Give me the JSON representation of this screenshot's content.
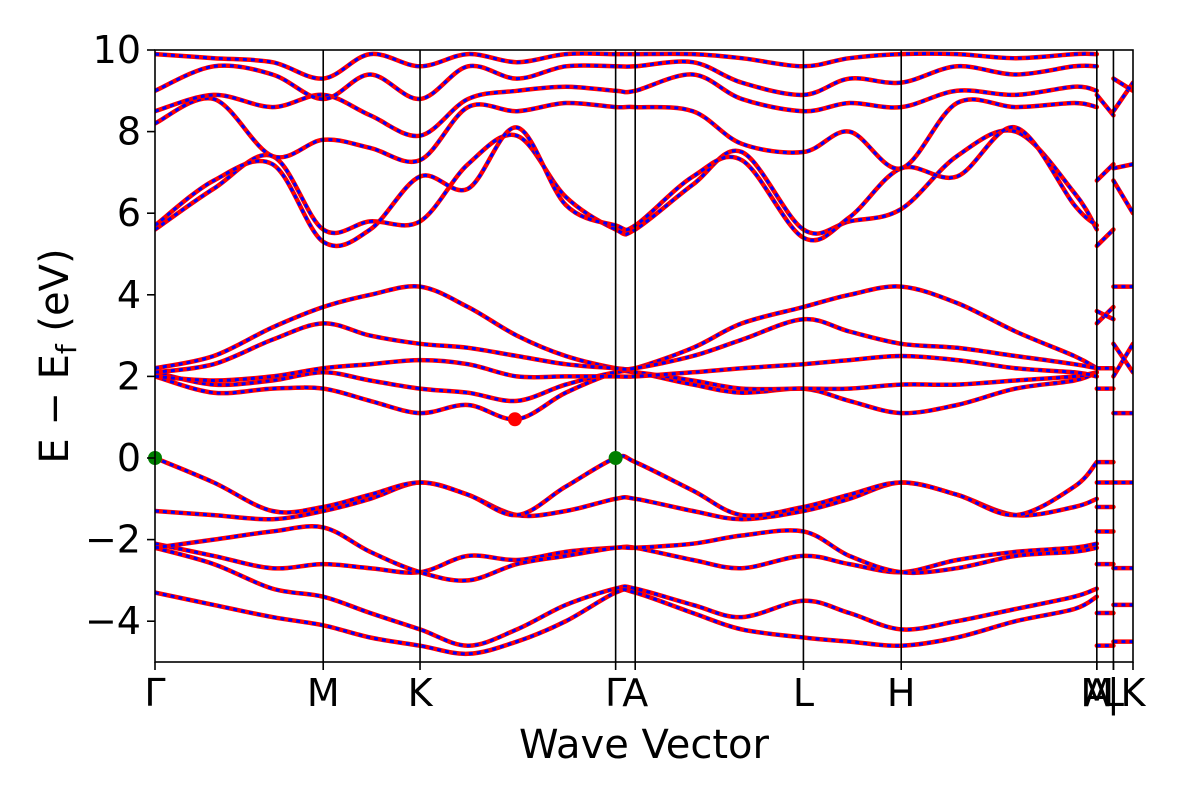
{
  "chart_data": {
    "type": "line",
    "title": "",
    "xlabel": "Wave Vector",
    "ylabel": "E − E_f (eV)",
    "ylabel_parts": {
      "main": "E − E",
      "sub": "f",
      "unit": " (eV)"
    },
    "ylim": [
      -5,
      10
    ],
    "xlim": [
      0,
      1
    ],
    "yticks": [
      {
        "value": -4,
        "label": "−4"
      },
      {
        "value": -2,
        "label": "−2"
      },
      {
        "value": 0,
        "label": "0"
      },
      {
        "value": 2,
        "label": "2"
      },
      {
        "value": 4,
        "label": "4"
      },
      {
        "value": 6,
        "label": "6"
      },
      {
        "value": 8,
        "label": "8"
      },
      {
        "value": 10,
        "label": "10"
      }
    ],
    "kpoints": [
      {
        "label": "Γ",
        "x": 0.0
      },
      {
        "label": "M",
        "x": 0.172
      },
      {
        "label": "K",
        "x": 0.271
      },
      {
        "label": "Γ",
        "x": 0.471
      },
      {
        "label": "A",
        "x": 0.491
      },
      {
        "label": "L",
        "x": 0.663
      },
      {
        "label": "H",
        "x": 0.763
      },
      {
        "label": "A",
        "x": 0.963
      },
      {
        "label": "M",
        "x": 0.963
      },
      {
        "label": "|",
        "x": 0.98
      },
      {
        "label": "L",
        "x": 0.98
      },
      {
        "label": "K",
        "x": 1.0
      }
    ],
    "series_colors": {
      "spin_up": "#ff0000",
      "spin_down": "#0000ff"
    },
    "markers": [
      {
        "name": "vbm",
        "x": 0.0,
        "y": 0.0,
        "color": "#007f00"
      },
      {
        "name": "vbm",
        "x": 0.471,
        "y": 0.0,
        "color": "#007f00"
      },
      {
        "name": "cbm",
        "x": 0.368,
        "y": 0.95,
        "color": "#ff0000"
      }
    ],
    "bands": [
      {
        "name": "band-1",
        "x": [
          0,
          0.06,
          0.12,
          0.172,
          0.22,
          0.271,
          0.32,
          0.37,
          0.42,
          0.471,
          0.491,
          0.55,
          0.6,
          0.663,
          0.71,
          0.763,
          0.82,
          0.88,
          0.94,
          0.963
        ],
        "y": [
          -2.2,
          -2.6,
          -3.2,
          -3.4,
          -3.8,
          -4.2,
          -4.6,
          -4.2,
          -3.6,
          -3.2,
          -3.2,
          -3.6,
          -3.9,
          -3.5,
          -3.8,
          -4.2,
          -4.0,
          -3.7,
          -3.4,
          -3.2
        ]
      },
      {
        "name": "band-2",
        "x": [
          0,
          0.06,
          0.12,
          0.172,
          0.22,
          0.271,
          0.32,
          0.37,
          0.42,
          0.471,
          0.491,
          0.55,
          0.6,
          0.663,
          0.71,
          0.763,
          0.82,
          0.88,
          0.94,
          0.963
        ],
        "y": [
          -3.3,
          -3.6,
          -3.9,
          -4.1,
          -4.4,
          -4.6,
          -4.8,
          -4.5,
          -4.0,
          -3.3,
          -3.3,
          -3.8,
          -4.2,
          -4.4,
          -4.5,
          -4.6,
          -4.4,
          -4.0,
          -3.7,
          -3.4
        ]
      },
      {
        "name": "band-3",
        "x": [
          0,
          0.06,
          0.12,
          0.172,
          0.22,
          0.271,
          0.32,
          0.37,
          0.42,
          0.471,
          0.491,
          0.55,
          0.6,
          0.663,
          0.71,
          0.763,
          0.82,
          0.88,
          0.94,
          0.963
        ],
        "y": [
          -2.1,
          -2.4,
          -2.7,
          -2.6,
          -2.7,
          -2.8,
          -2.4,
          -2.5,
          -2.3,
          -2.2,
          -2.2,
          -2.5,
          -2.7,
          -2.4,
          -2.6,
          -2.8,
          -2.5,
          -2.3,
          -2.2,
          -2.1
        ]
      },
      {
        "name": "band-4",
        "x": [
          0,
          0.06,
          0.12,
          0.172,
          0.22,
          0.271,
          0.32,
          0.37,
          0.42,
          0.471,
          0.491,
          0.55,
          0.6,
          0.663,
          0.71,
          0.763,
          0.82,
          0.88,
          0.94,
          0.963
        ],
        "y": [
          -2.2,
          -2.0,
          -1.8,
          -1.7,
          -2.3,
          -2.8,
          -3.0,
          -2.6,
          -2.4,
          -2.2,
          -2.2,
          -2.1,
          -1.9,
          -1.8,
          -2.4,
          -2.8,
          -2.7,
          -2.4,
          -2.3,
          -2.2
        ]
      },
      {
        "name": "band-5",
        "x": [
          0,
          0.06,
          0.12,
          0.172,
          0.22,
          0.271,
          0.32,
          0.37,
          0.42,
          0.471,
          0.491,
          0.55,
          0.6,
          0.663,
          0.71,
          0.763,
          0.82,
          0.88,
          0.94,
          0.963
        ],
        "y": [
          -1.3,
          -1.4,
          -1.5,
          -1.3,
          -1.0,
          -0.6,
          -0.9,
          -1.4,
          -1.3,
          -1.0,
          -1.0,
          -1.3,
          -1.5,
          -1.3,
          -1.0,
          -0.6,
          -0.9,
          -1.4,
          -1.2,
          -1.0
        ]
      },
      {
        "name": "band-6",
        "x": [
          0,
          0.06,
          0.12,
          0.172,
          0.22,
          0.271,
          0.32,
          0.37,
          0.42,
          0.471,
          0.491,
          0.55,
          0.6,
          0.663,
          0.71,
          0.763,
          0.82,
          0.88,
          0.94,
          0.963
        ],
        "y": [
          0.0,
          -0.6,
          -1.3,
          -1.2,
          -0.9,
          -0.6,
          -0.9,
          -1.4,
          -0.7,
          0.0,
          -0.1,
          -0.8,
          -1.4,
          -1.2,
          -0.9,
          -0.6,
          -0.9,
          -1.4,
          -0.7,
          -0.1
        ]
      },
      {
        "name": "band-7",
        "x": [
          0,
          0.06,
          0.12,
          0.172,
          0.22,
          0.271,
          0.32,
          0.37,
          0.42,
          0.471,
          0.491,
          0.55,
          0.6,
          0.663,
          0.71,
          0.763,
          0.82,
          0.88,
          0.94,
          0.963
        ],
        "y": [
          2.0,
          1.6,
          1.7,
          1.7,
          1.4,
          1.1,
          1.3,
          0.95,
          1.6,
          2.1,
          2.1,
          1.8,
          1.6,
          1.7,
          1.4,
          1.1,
          1.3,
          1.7,
          1.9,
          2.1
        ]
      },
      {
        "name": "band-8",
        "x": [
          0,
          0.06,
          0.12,
          0.172,
          0.22,
          0.271,
          0.32,
          0.37,
          0.42,
          0.471,
          0.491,
          0.55,
          0.6,
          0.663,
          0.71,
          0.763,
          0.82,
          0.88,
          0.94,
          0.963
        ],
        "y": [
          2.1,
          1.8,
          1.9,
          2.1,
          1.9,
          1.7,
          1.6,
          1.4,
          1.8,
          2.1,
          2.1,
          1.9,
          1.7,
          1.7,
          1.7,
          1.8,
          1.8,
          1.9,
          2.0,
          2.1
        ]
      },
      {
        "name": "band-9",
        "x": [
          0,
          0.06,
          0.12,
          0.172,
          0.22,
          0.271,
          0.32,
          0.37,
          0.42,
          0.471,
          0.491,
          0.55,
          0.6,
          0.663,
          0.71,
          0.763,
          0.82,
          0.88,
          0.94,
          0.963
        ],
        "y": [
          2.2,
          2.5,
          3.2,
          3.7,
          4.0,
          4.2,
          3.7,
          3.0,
          2.5,
          2.2,
          2.2,
          2.7,
          3.3,
          3.7,
          4.0,
          4.2,
          3.8,
          3.1,
          2.5,
          2.2
        ]
      },
      {
        "name": "band-10",
        "x": [
          0,
          0.06,
          0.12,
          0.172,
          0.22,
          0.271,
          0.32,
          0.37,
          0.42,
          0.471,
          0.491,
          0.55,
          0.6,
          0.663,
          0.71,
          0.763,
          0.82,
          0.88,
          0.94,
          0.963
        ],
        "y": [
          2.1,
          2.3,
          2.9,
          3.3,
          3.0,
          2.8,
          2.7,
          2.5,
          2.3,
          2.2,
          2.2,
          2.5,
          2.9,
          3.4,
          3.1,
          2.8,
          2.7,
          2.5,
          2.3,
          2.2
        ]
      },
      {
        "name": "band-11",
        "x": [
          0,
          0.06,
          0.12,
          0.172,
          0.22,
          0.271,
          0.32,
          0.37,
          0.42,
          0.471,
          0.491,
          0.55,
          0.6,
          0.663,
          0.71,
          0.763,
          0.82,
          0.88,
          0.94,
          0.963
        ],
        "y": [
          2.0,
          1.9,
          2.0,
          2.2,
          2.3,
          2.4,
          2.3,
          2.0,
          2.0,
          2.0,
          2.0,
          2.1,
          2.2,
          2.3,
          2.4,
          2.5,
          2.4,
          2.2,
          2.1,
          2.0
        ]
      },
      {
        "name": "band-12",
        "x": [
          0,
          0.06,
          0.12,
          0.172,
          0.22,
          0.271,
          0.32,
          0.37,
          0.42,
          0.471,
          0.491,
          0.55,
          0.6,
          0.663,
          0.71,
          0.763,
          0.82,
          0.88,
          0.94,
          0.963
        ],
        "y": [
          5.6,
          6.6,
          7.4,
          5.6,
          5.8,
          5.8,
          7.2,
          7.9,
          6.4,
          5.6,
          5.6,
          6.7,
          7.5,
          5.6,
          5.8,
          6.1,
          7.4,
          8.0,
          6.5,
          5.6
        ]
      },
      {
        "name": "band-13",
        "x": [
          0,
          0.06,
          0.12,
          0.172,
          0.22,
          0.271,
          0.32,
          0.37,
          0.42,
          0.471,
          0.491,
          0.55,
          0.6,
          0.663,
          0.71,
          0.763,
          0.82,
          0.88,
          0.94,
          0.963
        ],
        "y": [
          5.7,
          6.8,
          7.2,
          5.3,
          5.6,
          6.9,
          6.6,
          8.1,
          6.2,
          5.7,
          5.7,
          6.9,
          7.3,
          5.4,
          5.9,
          7.1,
          6.9,
          8.1,
          6.2,
          5.7
        ]
      },
      {
        "name": "band-14",
        "x": [
          0,
          0.06,
          0.12,
          0.172,
          0.22,
          0.271,
          0.32,
          0.37,
          0.42,
          0.471,
          0.491,
          0.55,
          0.6,
          0.663,
          0.71,
          0.763,
          0.82,
          0.88,
          0.94,
          0.963
        ],
        "y": [
          8.2,
          8.8,
          7.4,
          7.8,
          7.6,
          7.3,
          8.6,
          8.5,
          8.7,
          8.6,
          8.6,
          8.5,
          7.7,
          7.5,
          8.0,
          7.1,
          8.7,
          8.6,
          8.7,
          8.6
        ]
      },
      {
        "name": "band-15",
        "x": [
          0,
          0.06,
          0.12,
          0.172,
          0.22,
          0.271,
          0.32,
          0.37,
          0.42,
          0.471,
          0.491,
          0.55,
          0.6,
          0.663,
          0.71,
          0.763,
          0.82,
          0.88,
          0.94,
          0.963
        ],
        "y": [
          8.5,
          8.9,
          8.6,
          8.9,
          8.4,
          7.9,
          8.8,
          9.0,
          9.1,
          9.0,
          9.0,
          9.4,
          8.8,
          8.5,
          8.7,
          8.6,
          9.0,
          8.9,
          9.1,
          9.0
        ]
      },
      {
        "name": "band-16",
        "x": [
          0,
          0.06,
          0.12,
          0.172,
          0.22,
          0.271,
          0.32,
          0.37,
          0.42,
          0.471,
          0.491,
          0.55,
          0.6,
          0.663,
          0.71,
          0.763,
          0.82,
          0.88,
          0.94,
          0.963
        ],
        "y": [
          9.0,
          9.6,
          9.4,
          8.8,
          9.4,
          8.8,
          9.6,
          9.3,
          9.6,
          9.6,
          9.6,
          9.7,
          9.2,
          8.9,
          9.3,
          9.2,
          9.6,
          9.4,
          9.6,
          9.6
        ]
      },
      {
        "name": "band-17",
        "x": [
          0,
          0.06,
          0.12,
          0.172,
          0.22,
          0.271,
          0.32,
          0.37,
          0.42,
          0.471,
          0.491,
          0.55,
          0.6,
          0.663,
          0.71,
          0.763,
          0.82,
          0.88,
          0.94,
          0.963
        ],
        "y": [
          9.9,
          9.8,
          9.7,
          9.3,
          9.9,
          9.6,
          9.9,
          9.7,
          9.9,
          9.9,
          9.9,
          9.9,
          9.8,
          9.6,
          9.8,
          9.9,
          9.9,
          9.8,
          9.9,
          9.9
        ]
      }
    ],
    "segment_bands": [
      {
        "name": "seg-1",
        "x": [
          0.963,
          0.98
        ],
        "y": [
          -0.1,
          -0.1
        ]
      },
      {
        "name": "seg-2",
        "x": [
          0.963,
          0.98
        ],
        "y": [
          -0.6,
          -0.6
        ]
      },
      {
        "name": "seg-3",
        "x": [
          0.963,
          0.98
        ],
        "y": [
          -1.2,
          -1.2
        ]
      },
      {
        "name": "seg-4",
        "x": [
          0.963,
          0.98
        ],
        "y": [
          -1.8,
          -1.8
        ]
      },
      {
        "name": "seg-5",
        "x": [
          0.963,
          0.98
        ],
        "y": [
          -2.6,
          -2.6
        ]
      },
      {
        "name": "seg-6",
        "x": [
          0.963,
          0.98
        ],
        "y": [
          -3.8,
          -3.8
        ]
      },
      {
        "name": "seg-7",
        "x": [
          0.963,
          0.98
        ],
        "y": [
          -4.6,
          -4.6
        ]
      },
      {
        "name": "seg-8",
        "x": [
          0.963,
          0.98
        ],
        "y": [
          1.7,
          1.7
        ]
      },
      {
        "name": "seg-9",
        "x": [
          0.963,
          0.98
        ],
        "y": [
          2.2,
          2.2
        ]
      },
      {
        "name": "seg-10",
        "x": [
          0.963,
          0.98
        ],
        "y": [
          3.3,
          3.7
        ]
      },
      {
        "name": "seg-11",
        "x": [
          0.963,
          0.98
        ],
        "y": [
          3.6,
          3.4
        ]
      },
      {
        "name": "seg-12",
        "x": [
          0.963,
          0.98
        ],
        "y": [
          5.2,
          5.6
        ]
      },
      {
        "name": "seg-13",
        "x": [
          0.963,
          0.98
        ],
        "y": [
          6.8,
          7.2
        ]
      },
      {
        "name": "seg-14",
        "x": [
          0.963,
          0.98
        ],
        "y": [
          8.9,
          8.4
        ]
      },
      {
        "name": "seg-15",
        "x": [
          0.98,
          1.0
        ],
        "y": [
          -0.6,
          -0.6
        ]
      },
      {
        "name": "seg-16",
        "x": [
          0.98,
          1.0
        ],
        "y": [
          -2.7,
          -2.7
        ]
      },
      {
        "name": "seg-17",
        "x": [
          0.98,
          1.0
        ],
        "y": [
          -3.6,
          -3.6
        ]
      },
      {
        "name": "seg-18",
        "x": [
          0.98,
          1.0
        ],
        "y": [
          -4.5,
          -4.5
        ]
      },
      {
        "name": "seg-19",
        "x": [
          0.98,
          1.0
        ],
        "y": [
          1.1,
          1.1
        ]
      },
      {
        "name": "seg-20",
        "x": [
          0.98,
          1.0
        ],
        "y": [
          2.0,
          2.8
        ]
      },
      {
        "name": "seg-21",
        "x": [
          0.98,
          1.0
        ],
        "y": [
          2.8,
          2.1
        ]
      },
      {
        "name": "seg-22",
        "x": [
          0.98,
          1.0
        ],
        "y": [
          4.2,
          4.2
        ]
      },
      {
        "name": "seg-23",
        "x": [
          0.98,
          1.0
        ],
        "y": [
          6.8,
          6.0
        ]
      },
      {
        "name": "seg-24",
        "x": [
          0.98,
          1.0
        ],
        "y": [
          7.1,
          7.2
        ]
      },
      {
        "name": "seg-25",
        "x": [
          0.98,
          1.0
        ],
        "y": [
          8.5,
          9.2
        ]
      },
      {
        "name": "seg-26",
        "x": [
          0.98,
          1.0
        ],
        "y": [
          9.3,
          9.0
        ]
      }
    ]
  }
}
